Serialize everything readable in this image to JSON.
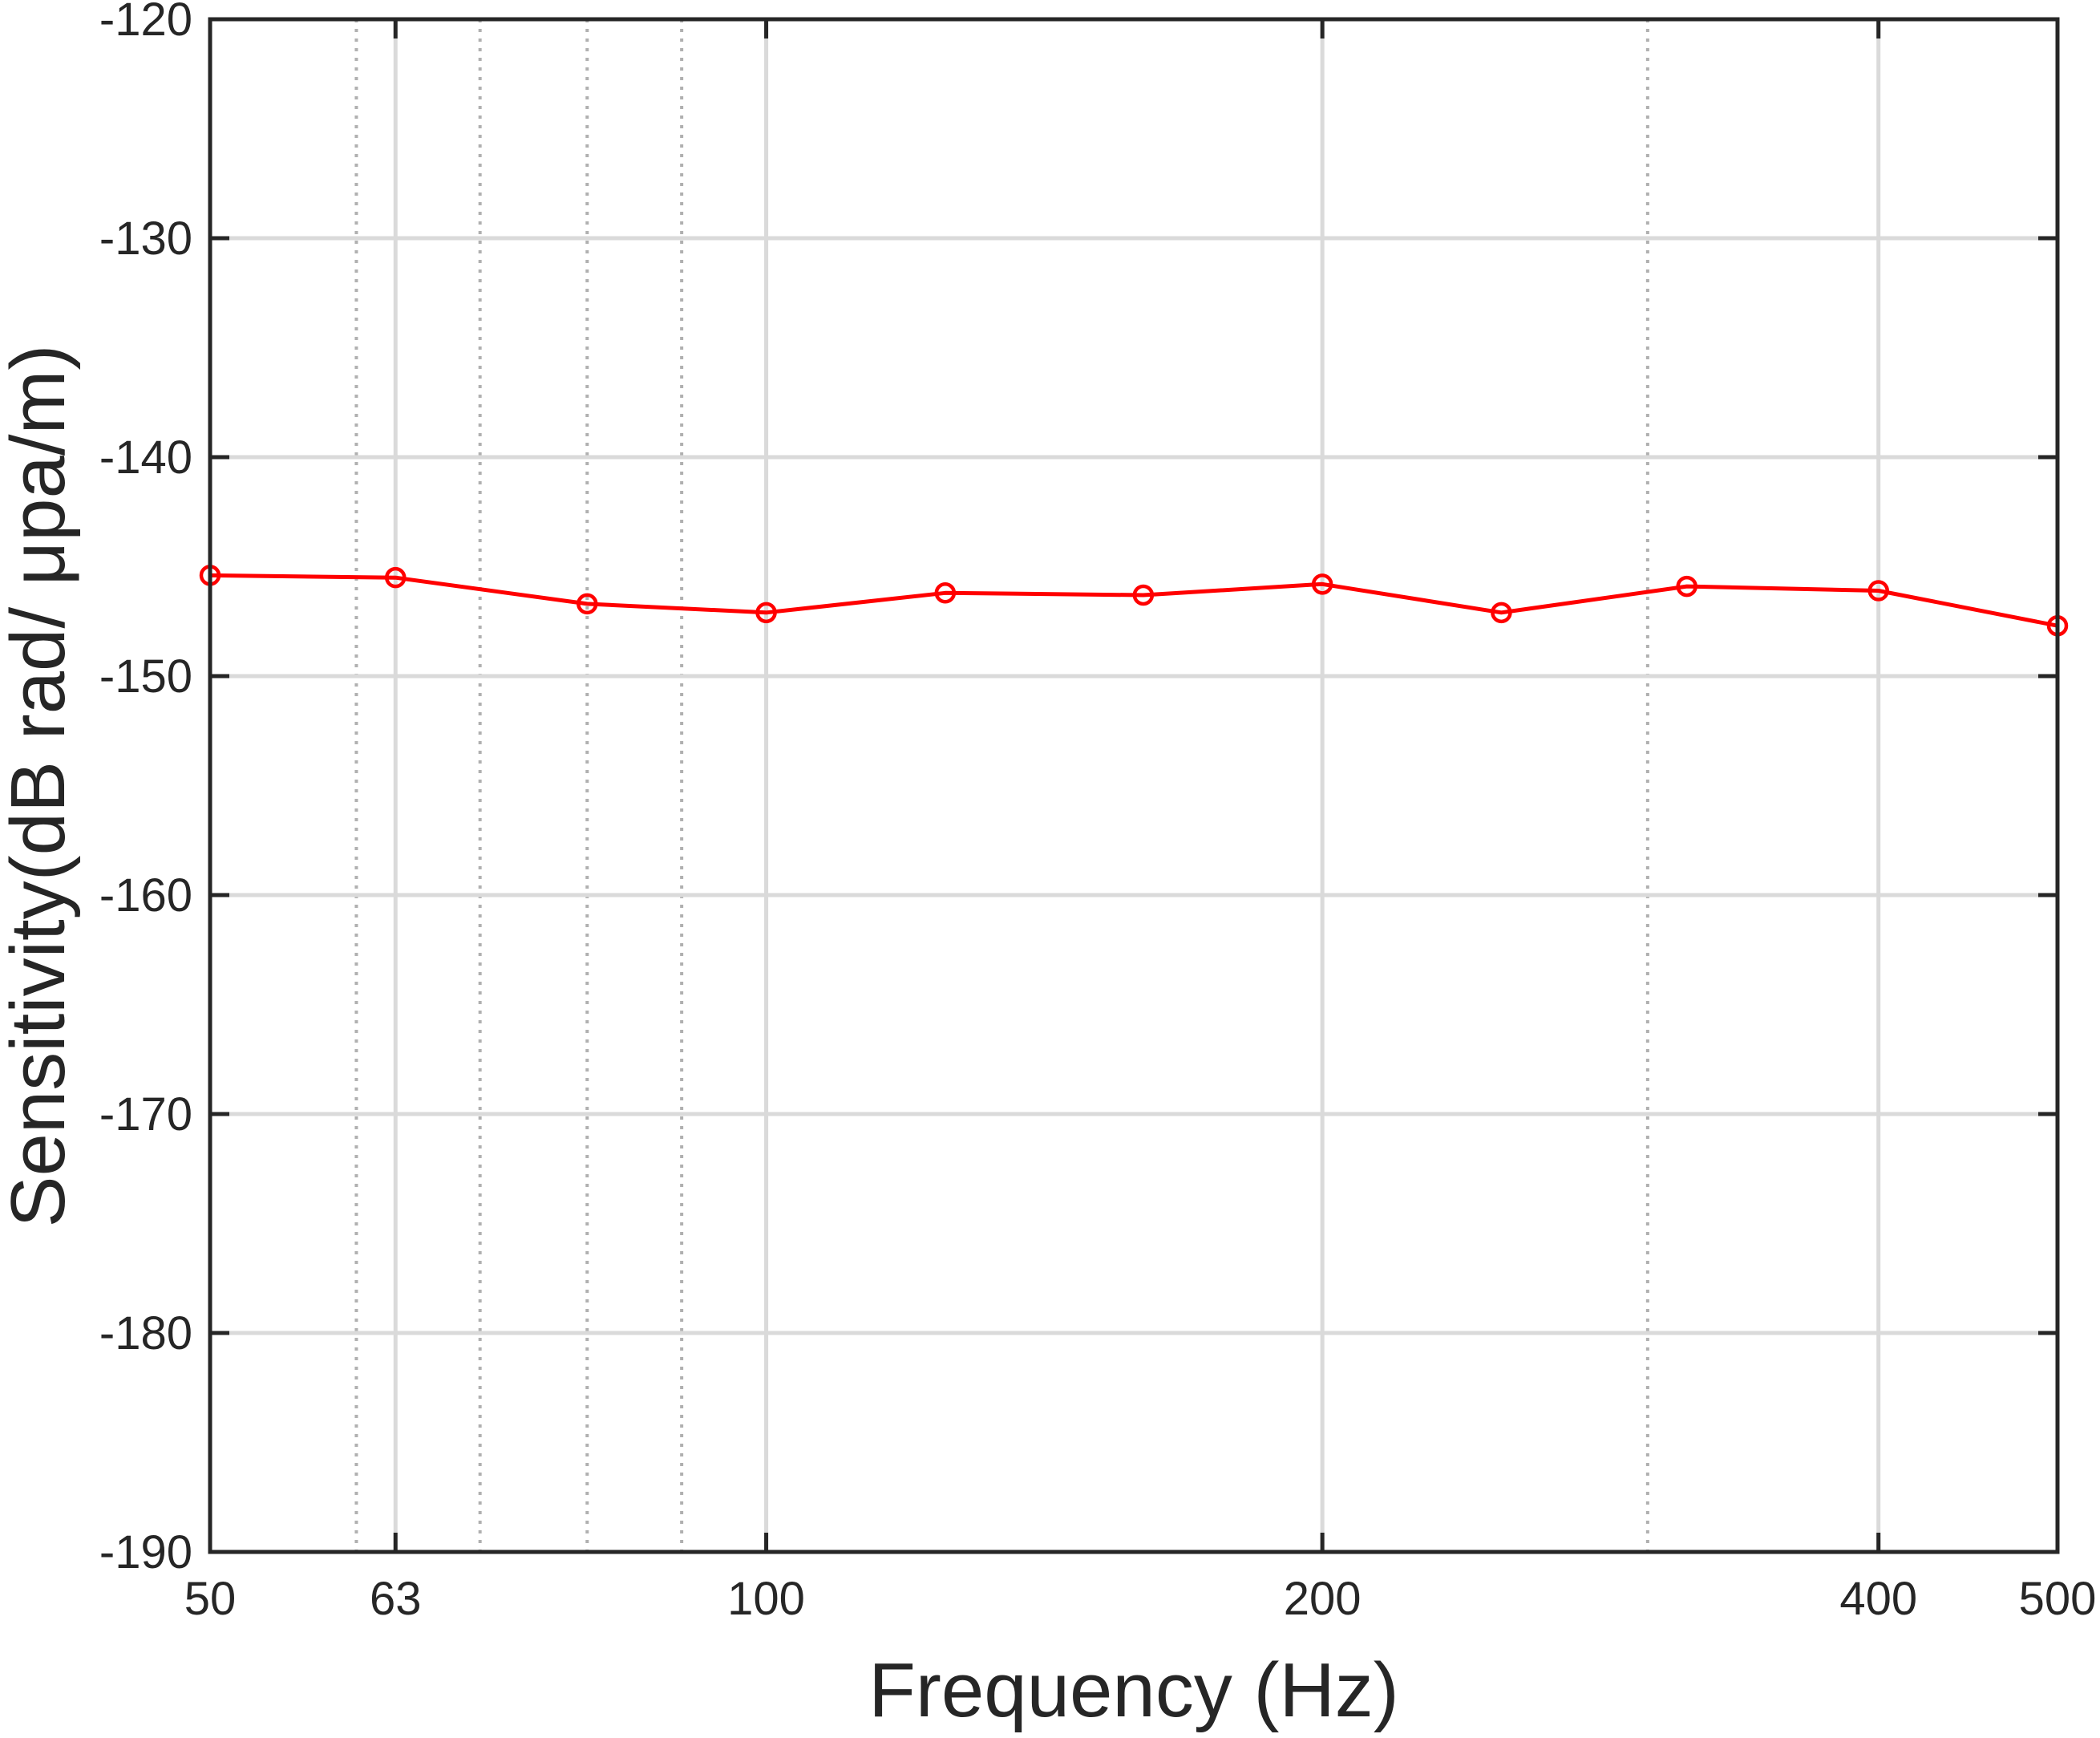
{
  "chart_data": {
    "type": "line",
    "xscale": "log",
    "xlim": [
      50,
      500
    ],
    "ylim": [
      -190,
      -120
    ],
    "xlabel": "Frequency (Hz)",
    "ylabel": "Sensitivity(dB rad/ μpa/m)",
    "xticks": [
      50,
      63,
      100,
      200,
      400,
      500
    ],
    "xtick_labels": [
      "50",
      "63",
      "100",
      "200",
      "400",
      "500"
    ],
    "yticks": [
      -190,
      -180,
      -170,
      -160,
      -150,
      -140,
      -130,
      -120
    ],
    "ytick_labels": [
      "-190",
      "-180",
      "-170",
      "-160",
      "-150",
      "-140",
      "-130",
      "-120"
    ],
    "x_minor_dotted_grid": [
      60,
      70,
      80,
      90,
      300
    ],
    "grid": true,
    "series": [
      {
        "x": [
          50,
          63,
          80,
          100,
          125,
          160,
          200,
          250,
          315,
          400,
          500
        ],
        "y": [
          -145.4,
          -145.5,
          -146.7,
          -147.1,
          -146.2,
          -146.3,
          -145.8,
          -147.1,
          -145.9,
          -146.1,
          -147.7
        ],
        "color": "#ff0000",
        "marker": "circle"
      }
    ]
  }
}
